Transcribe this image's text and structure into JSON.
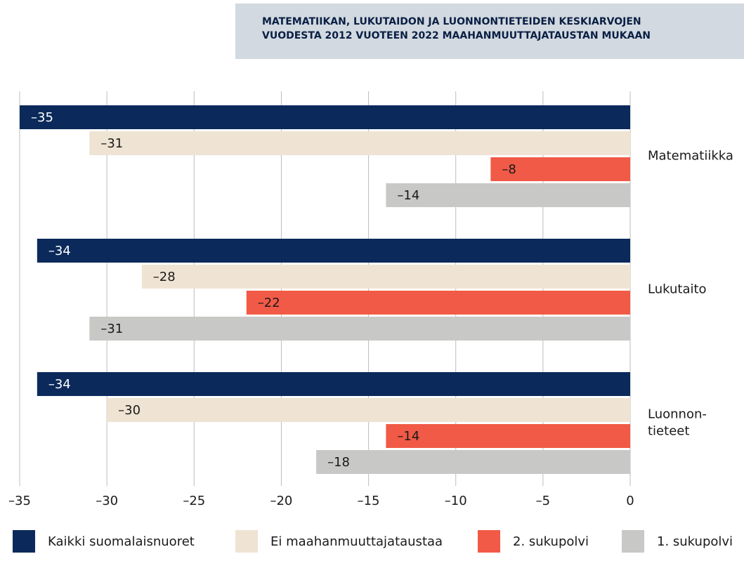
{
  "chart_data": {
    "type": "barh",
    "title": [
      "MATEMATIIKAN, LUKUTAIDON JA LUONNONTIETEIDEN KESKIARVOJEN",
      "VUODESTA 2012 VUOTEEN 2022 MAAHANMUUTTAJATAUSTAN MUKAAN"
    ],
    "categories": [
      "Matematiikka",
      "Lukutaito",
      "Luonnon-\ntieteet"
    ],
    "series": [
      {
        "name": "Kaikki suomalaisnuoret",
        "color": "#0b2a5b",
        "values": [
          -35,
          -34,
          -34
        ],
        "value_labels": [
          "–35",
          "–34",
          "–34"
        ]
      },
      {
        "name": "Ei maahanmuuttajataustaa",
        "color": "#efe3d3",
        "values": [
          -31,
          -28,
          -30
        ],
        "value_labels": [
          "–31",
          "–28",
          "–30"
        ]
      },
      {
        "name": "2. sukupolvi",
        "color": "#f15a46",
        "values": [
          -8,
          -22,
          -14
        ],
        "value_labels": [
          "–8",
          "–22",
          "–14"
        ]
      },
      {
        "name": "1. sukupolvi",
        "color": "#c8c8c6",
        "values": [
          -14,
          -31,
          -18
        ],
        "value_labels": [
          "–14",
          "–31",
          "–18"
        ]
      }
    ],
    "xlim": [
      -35,
      0
    ],
    "xticks": [
      {
        "value": -35,
        "label": "–35"
      },
      {
        "value": -30,
        "label": "–30"
      },
      {
        "value": -25,
        "label": "–25"
      },
      {
        "value": -20,
        "label": "–20"
      },
      {
        "value": -15,
        "label": "–15"
      },
      {
        "value": -10,
        "label": "–10"
      },
      {
        "value": -5,
        "label": "–5"
      },
      0
    ],
    "grid": true,
    "legend": "bottom"
  }
}
